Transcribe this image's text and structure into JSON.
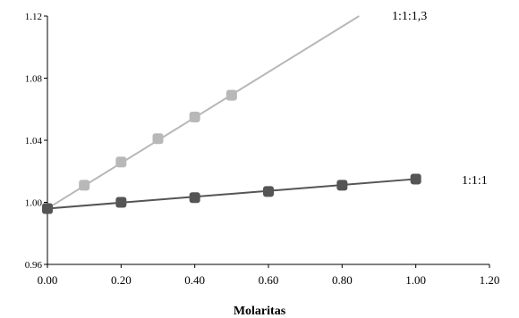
{
  "chart_data": {
    "type": "scatter",
    "xlabel": "Molaritas",
    "ylabel": "",
    "xlim": [
      0.0,
      1.2
    ],
    "ylim": [
      0.96,
      1.12
    ],
    "xticks": [
      0.0,
      0.2,
      0.4,
      0.6,
      0.8,
      1.0,
      1.2
    ],
    "yticks": [
      0.96,
      1.0,
      1.04,
      1.08,
      1.12
    ],
    "xtick_labels": [
      "0.00",
      "0.20",
      "0.40",
      "0.60",
      "0.80",
      "1.00",
      "1.20"
    ],
    "ytick_labels": [
      "0.96",
      "1.00",
      "1.04",
      "1.08",
      "1.12"
    ],
    "grid": false,
    "legend": "none",
    "series": [
      {
        "name": "1:1:1,3",
        "color": "#b8b8b8",
        "marker": "rounded-square",
        "x": [
          0.0,
          0.1,
          0.2,
          0.3,
          0.4,
          0.5
        ],
        "y": [
          0.996,
          1.011,
          1.026,
          1.041,
          1.055,
          1.069
        ],
        "trendline": {
          "x": [
            0.0,
            0.846
          ],
          "y": [
            0.996,
            1.12
          ]
        }
      },
      {
        "name": "1:1:1",
        "color": "#555555",
        "marker": "rounded-square",
        "x": [
          0.0,
          0.2,
          0.4,
          0.6,
          0.8,
          1.0
        ],
        "y": [
          0.996,
          1.0,
          1.003,
          1.007,
          1.011,
          1.015
        ],
        "trendline": {
          "x": [
            0.0,
            1.0
          ],
          "y": [
            0.996,
            1.015
          ]
        }
      }
    ]
  }
}
